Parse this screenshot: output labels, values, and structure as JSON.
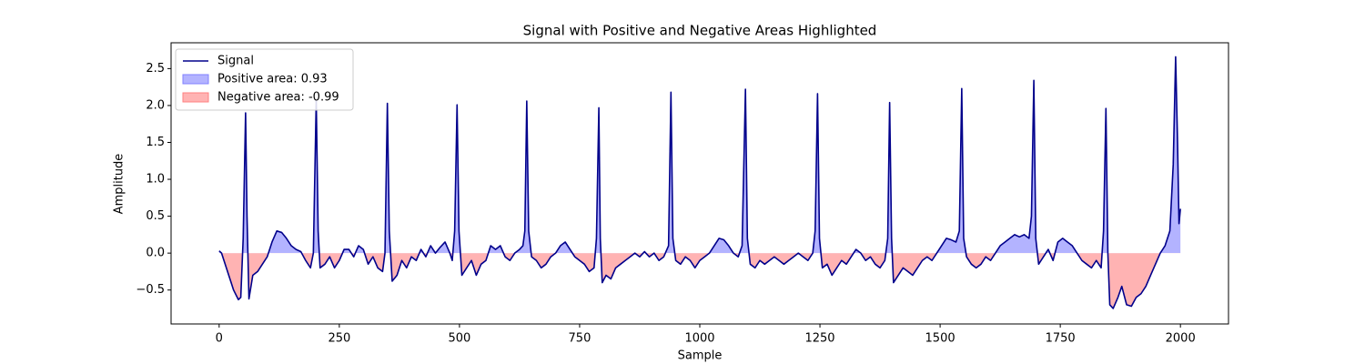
{
  "chart_data": {
    "type": "line",
    "title": "Signal with Positive and Negative Areas Highlighted",
    "xlabel": "Sample",
    "ylabel": "Amplitude",
    "x": [
      0,
      5,
      10,
      20,
      30,
      40,
      45,
      50,
      55,
      58,
      62,
      70,
      80,
      90,
      100,
      110,
      120,
      130,
      140,
      150,
      160,
      170,
      180,
      190,
      196,
      202,
      206,
      210,
      220,
      230,
      240,
      250,
      260,
      270,
      280,
      290,
      300,
      310,
      320,
      330,
      340,
      345,
      350,
      354,
      360,
      370,
      380,
      390,
      400,
      410,
      420,
      430,
      440,
      450,
      460,
      470,
      480,
      485,
      490,
      495,
      499,
      505,
      515,
      525,
      535,
      545,
      555,
      565,
      575,
      585,
      595,
      605,
      615,
      625,
      632,
      636,
      640,
      644,
      650,
      660,
      670,
      680,
      690,
      700,
      710,
      720,
      730,
      740,
      750,
      760,
      770,
      780,
      785,
      790,
      793,
      797,
      805,
      815,
      825,
      835,
      845,
      855,
      865,
      875,
      885,
      895,
      905,
      915,
      925,
      935,
      940,
      944,
      950,
      960,
      970,
      980,
      990,
      1000,
      1010,
      1020,
      1030,
      1040,
      1050,
      1060,
      1070,
      1080,
      1088,
      1095,
      1099,
      1105,
      1115,
      1125,
      1135,
      1145,
      1155,
      1165,
      1175,
      1185,
      1195,
      1205,
      1215,
      1225,
      1235,
      1240,
      1245,
      1249,
      1255,
      1265,
      1275,
      1285,
      1295,
      1305,
      1315,
      1325,
      1335,
      1345,
      1355,
      1365,
      1375,
      1385,
      1391,
      1395,
      1399,
      1403,
      1413,
      1423,
      1433,
      1443,
      1453,
      1463,
      1473,
      1483,
      1493,
      1503,
      1513,
      1523,
      1533,
      1540,
      1545,
      1549,
      1555,
      1565,
      1575,
      1585,
      1595,
      1605,
      1615,
      1625,
      1635,
      1645,
      1655,
      1665,
      1675,
      1685,
      1690,
      1695,
      1699,
      1705,
      1715,
      1725,
      1735,
      1745,
      1755,
      1765,
      1775,
      1785,
      1795,
      1805,
      1815,
      1825,
      1835,
      1840,
      1845,
      1849,
      1853,
      1860,
      1870,
      1878,
      1888,
      1898,
      1908,
      1918,
      1928,
      1938,
      1948,
      1958,
      1968,
      1978,
      1985,
      1990,
      1994,
      1997,
      2000
    ],
    "series": [
      {
        "name": "Signal",
        "color": "#00008b",
        "values": [
          0.03,
          0.0,
          -0.1,
          -0.3,
          -0.5,
          -0.63,
          -0.6,
          0.2,
          1.9,
          0.5,
          -0.62,
          -0.3,
          -0.25,
          -0.15,
          -0.05,
          0.15,
          0.3,
          0.28,
          0.2,
          0.1,
          0.05,
          0.02,
          -0.1,
          -0.2,
          0.0,
          2.07,
          0.3,
          -0.2,
          -0.15,
          -0.05,
          -0.2,
          -0.1,
          0.05,
          0.05,
          -0.05,
          0.1,
          0.05,
          -0.15,
          -0.05,
          -0.2,
          -0.25,
          0.0,
          2.03,
          0.3,
          -0.38,
          -0.3,
          -0.1,
          -0.2,
          -0.05,
          -0.1,
          0.05,
          -0.05,
          0.1,
          0.0,
          0.08,
          0.15,
          0.0,
          -0.1,
          0.3,
          2.01,
          0.3,
          -0.3,
          -0.2,
          -0.1,
          -0.3,
          -0.15,
          -0.1,
          0.1,
          0.05,
          0.1,
          -0.05,
          -0.1,
          0.0,
          0.05,
          0.1,
          0.3,
          2.06,
          0.3,
          -0.05,
          -0.1,
          -0.2,
          -0.15,
          -0.05,
          0.0,
          0.1,
          0.15,
          0.05,
          -0.05,
          -0.1,
          -0.15,
          -0.25,
          -0.2,
          0.2,
          1.97,
          0.2,
          -0.4,
          -0.3,
          -0.35,
          -0.2,
          -0.15,
          -0.1,
          -0.05,
          0.0,
          -0.05,
          0.02,
          -0.05,
          0.0,
          -0.1,
          -0.05,
          0.1,
          2.18,
          0.2,
          -0.1,
          -0.15,
          -0.05,
          -0.1,
          -0.2,
          -0.1,
          -0.05,
          0.0,
          0.1,
          0.2,
          0.18,
          0.1,
          0.0,
          -0.05,
          0.1,
          2.22,
          0.2,
          -0.15,
          -0.2,
          -0.1,
          -0.15,
          -0.1,
          -0.05,
          -0.1,
          -0.15,
          -0.1,
          -0.05,
          0.0,
          -0.05,
          -0.1,
          0.0,
          0.3,
          2.16,
          0.2,
          -0.2,
          -0.15,
          -0.3,
          -0.2,
          -0.1,
          -0.15,
          -0.05,
          0.05,
          0.0,
          -0.1,
          -0.05,
          -0.15,
          -0.2,
          -0.1,
          0.2,
          2.04,
          0.2,
          -0.4,
          -0.3,
          -0.2,
          -0.25,
          -0.3,
          -0.2,
          -0.1,
          -0.05,
          -0.1,
          0.0,
          0.1,
          0.2,
          0.18,
          0.15,
          0.3,
          2.23,
          0.2,
          -0.05,
          -0.15,
          -0.2,
          -0.15,
          -0.05,
          -0.1,
          0.0,
          0.1,
          0.15,
          0.2,
          0.25,
          0.22,
          0.25,
          0.2,
          0.5,
          2.34,
          0.2,
          -0.15,
          -0.05,
          0.05,
          -0.1,
          0.15,
          0.2,
          0.15,
          0.1,
          0.0,
          -0.1,
          -0.15,
          -0.2,
          -0.1,
          -0.2,
          0.3,
          1.96,
          0.0,
          -0.7,
          -0.75,
          -0.6,
          -0.45,
          -0.7,
          -0.72,
          -0.6,
          -0.55,
          -0.45,
          -0.3,
          -0.15,
          0.0,
          0.1,
          0.3,
          1.2,
          2.66,
          1.5,
          0.4,
          0.6
        ]
      }
    ],
    "fills": [
      {
        "name": "Positive area: 0.93",
        "color": "#b3b3ff",
        "side": "positive"
      },
      {
        "name": "Negative area: -0.99",
        "color": "#ffb3b3",
        "side": "negative"
      }
    ],
    "xlim": [
      -100,
      2100
    ],
    "xticks": [
      0,
      250,
      500,
      750,
      1000,
      1250,
      1500,
      1750,
      2000
    ],
    "ylim": [
      -0.96,
      2.85
    ],
    "yticks": [
      {
        "value": -0.5,
        "label": "−0.5"
      },
      {
        "value": 0,
        "label": "0.0"
      },
      0.5,
      {
        "value": 1,
        "label": "1.0"
      },
      1.5,
      {
        "value": 2,
        "label": "2.0"
      },
      2.5
    ],
    "legend": "upper left"
  }
}
